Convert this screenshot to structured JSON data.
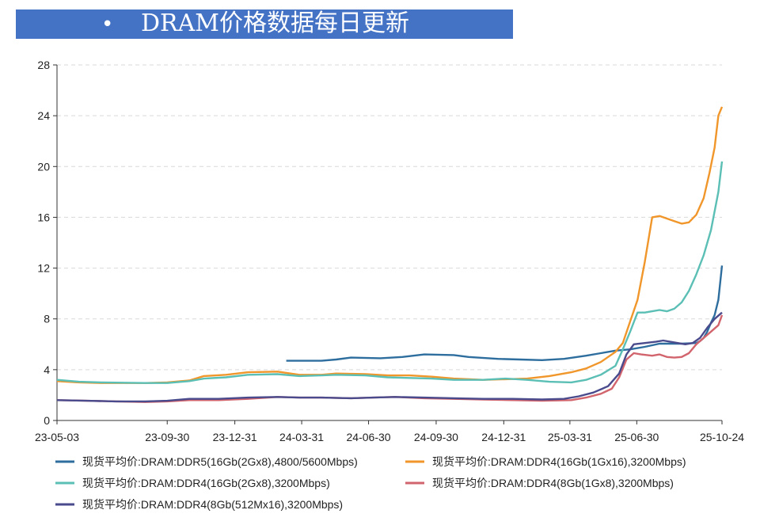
{
  "header": {
    "bullet": "•",
    "title": "DRAM价格数据每日更新"
  },
  "colors": {
    "header_bg": "#4472c4",
    "grid": "#d9d9d9",
    "axis": "#333333"
  },
  "chart_data": {
    "type": "line",
    "title": "DRAM价格数据每日更新",
    "xlabel": "",
    "ylabel": "",
    "ylim": [
      0,
      28
    ],
    "yticks": [
      0,
      4,
      8,
      12,
      16,
      20,
      24,
      28
    ],
    "xlim": [
      0,
      905
    ],
    "xticks": [
      {
        "label": "23-05-03",
        "x": 0
      },
      {
        "label": "23-09-30",
        "x": 150
      },
      {
        "label": "23-12-31",
        "x": 242
      },
      {
        "label": "24-03-31",
        "x": 333
      },
      {
        "label": "24-06-30",
        "x": 424
      },
      {
        "label": "24-09-30",
        "x": 516
      },
      {
        "label": "24-12-31",
        "x": 608
      },
      {
        "label": "25-03-31",
        "x": 698
      },
      {
        "label": "25-06-30",
        "x": 789
      },
      {
        "label": "25-10-24",
        "x": 905
      }
    ],
    "grid": true,
    "legend_position": "bottom",
    "series": [
      {
        "name": "现货平均价:DRAM:DDR5(16Gb(2Gx8),4800/5600Mbps)",
        "color": "#2e6e9e",
        "points": [
          [
            312,
            4.7
          ],
          [
            360,
            4.7
          ],
          [
            380,
            4.8
          ],
          [
            400,
            4.95
          ],
          [
            440,
            4.9
          ],
          [
            470,
            5.0
          ],
          [
            500,
            5.2
          ],
          [
            540,
            5.15
          ],
          [
            560,
            5.0
          ],
          [
            600,
            4.85
          ],
          [
            630,
            4.8
          ],
          [
            660,
            4.75
          ],
          [
            690,
            4.85
          ],
          [
            720,
            5.1
          ],
          [
            740,
            5.3
          ],
          [
            760,
            5.5
          ],
          [
            780,
            5.6
          ],
          [
            800,
            5.8
          ],
          [
            820,
            6.05
          ],
          [
            850,
            6.05
          ],
          [
            870,
            6.1
          ],
          [
            875,
            6.25
          ],
          [
            880,
            6.5
          ],
          [
            885,
            7.0
          ],
          [
            890,
            7.7
          ],
          [
            895,
            8.3
          ],
          [
            900,
            9.5
          ],
          [
            905,
            12.2
          ]
        ]
      },
      {
        "name": "现货平均价:DRAM:DDR4(16Gb(1Gx16),3200Mbps)",
        "color": "#f0962a",
        "points": [
          [
            0,
            3.1
          ],
          [
            30,
            3.0
          ],
          [
            60,
            2.95
          ],
          [
            120,
            2.95
          ],
          [
            150,
            3.0
          ],
          [
            180,
            3.15
          ],
          [
            200,
            3.5
          ],
          [
            230,
            3.6
          ],
          [
            260,
            3.8
          ],
          [
            300,
            3.85
          ],
          [
            330,
            3.6
          ],
          [
            360,
            3.6
          ],
          [
            380,
            3.7
          ],
          [
            420,
            3.65
          ],
          [
            450,
            3.55
          ],
          [
            480,
            3.55
          ],
          [
            510,
            3.45
          ],
          [
            540,
            3.3
          ],
          [
            580,
            3.2
          ],
          [
            610,
            3.25
          ],
          [
            640,
            3.3
          ],
          [
            670,
            3.5
          ],
          [
            700,
            3.8
          ],
          [
            720,
            4.1
          ],
          [
            740,
            4.6
          ],
          [
            750,
            5.0
          ],
          [
            760,
            5.4
          ],
          [
            770,
            6.1
          ],
          [
            780,
            7.8
          ],
          [
            790,
            9.5
          ],
          [
            800,
            12.5
          ],
          [
            810,
            16.0
          ],
          [
            820,
            16.1
          ],
          [
            830,
            15.9
          ],
          [
            840,
            15.7
          ],
          [
            850,
            15.5
          ],
          [
            860,
            15.6
          ],
          [
            870,
            16.2
          ],
          [
            880,
            17.5
          ],
          [
            888,
            19.5
          ],
          [
            895,
            21.5
          ],
          [
            900,
            24.0
          ],
          [
            905,
            24.7
          ]
        ]
      },
      {
        "name": "现货平均价:DRAM:DDR4(16Gb(2Gx8),3200Mbps)",
        "color": "#5bbfb5",
        "points": [
          [
            0,
            3.2
          ],
          [
            30,
            3.05
          ],
          [
            60,
            3.0
          ],
          [
            120,
            2.95
          ],
          [
            150,
            2.95
          ],
          [
            180,
            3.1
          ],
          [
            200,
            3.3
          ],
          [
            230,
            3.4
          ],
          [
            260,
            3.6
          ],
          [
            300,
            3.65
          ],
          [
            330,
            3.5
          ],
          [
            360,
            3.55
          ],
          [
            380,
            3.6
          ],
          [
            420,
            3.55
          ],
          [
            450,
            3.4
          ],
          [
            480,
            3.35
          ],
          [
            510,
            3.3
          ],
          [
            540,
            3.2
          ],
          [
            580,
            3.2
          ],
          [
            610,
            3.3
          ],
          [
            640,
            3.2
          ],
          [
            670,
            3.05
          ],
          [
            700,
            3.0
          ],
          [
            720,
            3.2
          ],
          [
            740,
            3.6
          ],
          [
            760,
            4.3
          ],
          [
            770,
            5.6
          ],
          [
            780,
            7.0
          ],
          [
            790,
            8.5
          ],
          [
            800,
            8.5
          ],
          [
            810,
            8.6
          ],
          [
            820,
            8.7
          ],
          [
            830,
            8.6
          ],
          [
            840,
            8.8
          ],
          [
            850,
            9.3
          ],
          [
            860,
            10.2
          ],
          [
            870,
            11.5
          ],
          [
            880,
            13.0
          ],
          [
            890,
            15.0
          ],
          [
            900,
            18.0
          ],
          [
            905,
            20.4
          ]
        ]
      },
      {
        "name": "现货平均价:DRAM:DDR4(8Gb(1Gx8),3200Mbps)",
        "color": "#d1646c",
        "points": [
          [
            0,
            1.6
          ],
          [
            40,
            1.55
          ],
          [
            80,
            1.5
          ],
          [
            120,
            1.45
          ],
          [
            150,
            1.5
          ],
          [
            180,
            1.6
          ],
          [
            220,
            1.6
          ],
          [
            260,
            1.7
          ],
          [
            300,
            1.85
          ],
          [
            330,
            1.8
          ],
          [
            360,
            1.8
          ],
          [
            400,
            1.75
          ],
          [
            430,
            1.8
          ],
          [
            460,
            1.85
          ],
          [
            500,
            1.75
          ],
          [
            540,
            1.7
          ],
          [
            580,
            1.65
          ],
          [
            620,
            1.6
          ],
          [
            660,
            1.55
          ],
          [
            700,
            1.6
          ],
          [
            720,
            1.8
          ],
          [
            740,
            2.1
          ],
          [
            755,
            2.5
          ],
          [
            765,
            3.4
          ],
          [
            775,
            4.8
          ],
          [
            785,
            5.3
          ],
          [
            795,
            5.2
          ],
          [
            810,
            5.1
          ],
          [
            820,
            5.2
          ],
          [
            830,
            5.0
          ],
          [
            840,
            4.95
          ],
          [
            850,
            5.0
          ],
          [
            860,
            5.3
          ],
          [
            870,
            6.0
          ],
          [
            880,
            6.5
          ],
          [
            890,
            7.0
          ],
          [
            900,
            7.5
          ],
          [
            905,
            8.3
          ]
        ]
      },
      {
        "name": "现货平均价:DRAM:DDR4(8Gb(512Mx16),3200Mbps)",
        "color": "#4a4b8c",
        "points": [
          [
            0,
            1.6
          ],
          [
            40,
            1.55
          ],
          [
            80,
            1.5
          ],
          [
            120,
            1.5
          ],
          [
            150,
            1.55
          ],
          [
            180,
            1.7
          ],
          [
            220,
            1.7
          ],
          [
            260,
            1.8
          ],
          [
            300,
            1.85
          ],
          [
            330,
            1.8
          ],
          [
            360,
            1.8
          ],
          [
            400,
            1.75
          ],
          [
            430,
            1.8
          ],
          [
            460,
            1.85
          ],
          [
            500,
            1.8
          ],
          [
            540,
            1.75
          ],
          [
            580,
            1.7
          ],
          [
            620,
            1.7
          ],
          [
            660,
            1.65
          ],
          [
            690,
            1.7
          ],
          [
            710,
            1.9
          ],
          [
            730,
            2.2
          ],
          [
            750,
            2.7
          ],
          [
            765,
            3.7
          ],
          [
            775,
            5.2
          ],
          [
            785,
            6.0
          ],
          [
            800,
            6.1
          ],
          [
            815,
            6.2
          ],
          [
            825,
            6.3
          ],
          [
            840,
            6.15
          ],
          [
            855,
            6.0
          ],
          [
            865,
            6.1
          ],
          [
            875,
            6.5
          ],
          [
            885,
            7.3
          ],
          [
            895,
            8.0
          ],
          [
            905,
            8.5
          ]
        ]
      }
    ]
  }
}
